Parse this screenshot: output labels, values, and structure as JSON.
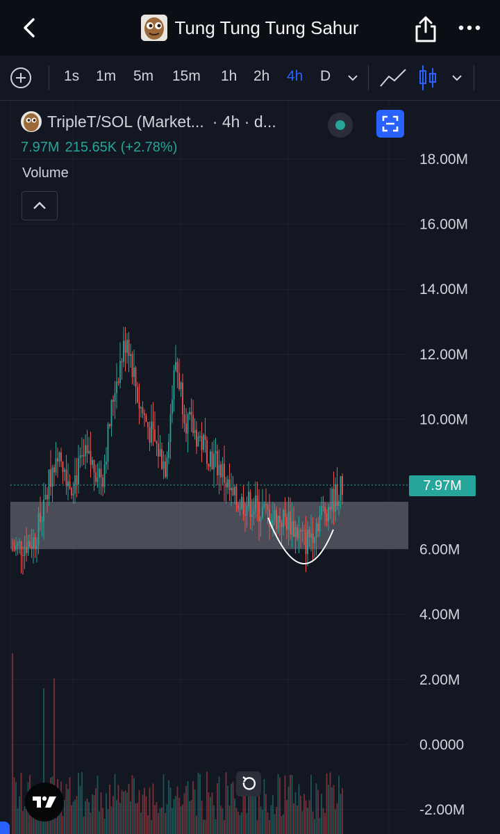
{
  "header": {
    "title": "Tung Tung Tung Sahur",
    "back_icon": "chevron-left-icon",
    "share_icon": "share-icon",
    "more_icon": "more-horizontal-icon"
  },
  "toolbar": {
    "add_icon": "plus-circle-icon",
    "timeframes": [
      "1s",
      "1m",
      "5m",
      "15m",
      "1h",
      "2h",
      "4h",
      "D"
    ],
    "active_timeframe": "4h",
    "timeframe_dropdown_icon": "chevron-down-icon",
    "line_tool_icon": "line-chart-icon",
    "candle_icon": "candlestick-icon",
    "chart_type_dropdown_icon": "chevron-down-icon"
  },
  "legend": {
    "symbol": "TripleT/SOL (Market...",
    "interval": "· 4h · d...",
    "price": "7.97M",
    "change": "215.65K (+2.78%)",
    "status_color": "#26a69a"
  },
  "volume": {
    "label": "Volume",
    "collapse_icon": "chevron-up-icon"
  },
  "price_axis": {
    "labels": [
      "18.00M",
      "16.00M",
      "14.00M",
      "12.00M",
      "10.00M",
      "6.00M",
      "4.00M",
      "2.00M",
      "0.0000",
      "-2.00M"
    ],
    "current_price": "7.97M"
  },
  "colors": {
    "background": "#131722",
    "up": "#26a69a",
    "down": "#ef5350",
    "accent": "#2962ff"
  },
  "chart_data": {
    "type": "candlestick",
    "series": [
      {
        "name": "TripleT/SOL",
        "last": 7.97,
        "change_pct": 2.78
      }
    ],
    "units": "M",
    "ylim": [
      -2.0,
      19.0
    ],
    "support_zone": [
      6.0,
      7.5
    ],
    "current_price": 7.97,
    "grid": true
  },
  "controls": {
    "reset_icon": "rotate-ccw-icon",
    "logo_icon": "tradingview-logo-icon"
  }
}
